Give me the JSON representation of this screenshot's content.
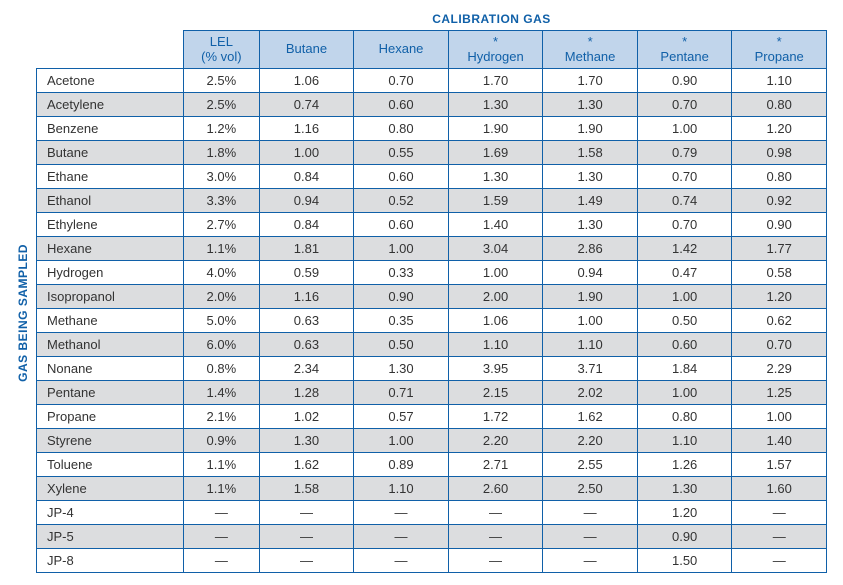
{
  "title_top": "CALIBRATION GAS",
  "title_side": "GAS BEING SAMPLED",
  "colors": {
    "accent": "#1060a8",
    "header_bg": "#c1d5eb",
    "row_odd": "#ffffff",
    "row_even": "#dcdddf",
    "border": "#1060a8",
    "text": "#333333"
  },
  "columns": [
    {
      "key": "lel",
      "label": "LEL\n(% vol)",
      "star": false
    },
    {
      "key": "butane",
      "label": "Butane",
      "star": false
    },
    {
      "key": "hexane",
      "label": "Hexane",
      "star": false
    },
    {
      "key": "hydrogen",
      "label": "Hydrogen",
      "star": true
    },
    {
      "key": "methane",
      "label": "Methane",
      "star": true
    },
    {
      "key": "pentane",
      "label": "Pentane",
      "star": true
    },
    {
      "key": "propane",
      "label": "Propane",
      "star": true
    }
  ],
  "rows": [
    {
      "name": "Acetone",
      "lel": "2.5%",
      "v": [
        "1.06",
        "0.70",
        "1.70",
        "1.70",
        "0.90",
        "1.10"
      ]
    },
    {
      "name": "Acetylene",
      "lel": "2.5%",
      "v": [
        "0.74",
        "0.60",
        "1.30",
        "1.30",
        "0.70",
        "0.80"
      ]
    },
    {
      "name": "Benzene",
      "lel": "1.2%",
      "v": [
        "1.16",
        "0.80",
        "1.90",
        "1.90",
        "1.00",
        "1.20"
      ]
    },
    {
      "name": "Butane",
      "lel": "1.8%",
      "v": [
        "1.00",
        "0.55",
        "1.69",
        "1.58",
        "0.79",
        "0.98"
      ]
    },
    {
      "name": "Ethane",
      "lel": "3.0%",
      "v": [
        "0.84",
        "0.60",
        "1.30",
        "1.30",
        "0.70",
        "0.80"
      ]
    },
    {
      "name": "Ethanol",
      "lel": "3.3%",
      "v": [
        "0.94",
        "0.52",
        "1.59",
        "1.49",
        "0.74",
        "0.92"
      ]
    },
    {
      "name": "Ethylene",
      "lel": "2.7%",
      "v": [
        "0.84",
        "0.60",
        "1.40",
        "1.30",
        "0.70",
        "0.90"
      ]
    },
    {
      "name": "Hexane",
      "lel": "1.1%",
      "v": [
        "1.81",
        "1.00",
        "3.04",
        "2.86",
        "1.42",
        "1.77"
      ]
    },
    {
      "name": "Hydrogen",
      "lel": "4.0%",
      "v": [
        "0.59",
        "0.33",
        "1.00",
        "0.94",
        "0.47",
        "0.58"
      ]
    },
    {
      "name": "Isopropanol",
      "lel": "2.0%",
      "v": [
        "1.16",
        "0.90",
        "2.00",
        "1.90",
        "1.00",
        "1.20"
      ]
    },
    {
      "name": "Methane",
      "lel": "5.0%",
      "v": [
        "0.63",
        "0.35",
        "1.06",
        "1.00",
        "0.50",
        "0.62"
      ]
    },
    {
      "name": "Methanol",
      "lel": "6.0%",
      "v": [
        "0.63",
        "0.50",
        "1.10",
        "1.10",
        "0.60",
        "0.70"
      ]
    },
    {
      "name": "Nonane",
      "lel": "0.8%",
      "v": [
        "2.34",
        "1.30",
        "3.95",
        "3.71",
        "1.84",
        "2.29"
      ]
    },
    {
      "name": "Pentane",
      "lel": "1.4%",
      "v": [
        "1.28",
        "0.71",
        "2.15",
        "2.02",
        "1.00",
        "1.25"
      ]
    },
    {
      "name": "Propane",
      "lel": "2.1%",
      "v": [
        "1.02",
        "0.57",
        "1.72",
        "1.62",
        "0.80",
        "1.00"
      ]
    },
    {
      "name": "Styrene",
      "lel": "0.9%",
      "v": [
        "1.30",
        "1.00",
        "2.20",
        "2.20",
        "1.10",
        "1.40"
      ]
    },
    {
      "name": "Toluene",
      "lel": "1.1%",
      "v": [
        "1.62",
        "0.89",
        "2.71",
        "2.55",
        "1.26",
        "1.57"
      ]
    },
    {
      "name": "Xylene",
      "lel": "1.1%",
      "v": [
        "1.58",
        "1.10",
        "2.60",
        "2.50",
        "1.30",
        "1.60"
      ]
    },
    {
      "name": "JP-4",
      "lel": "—",
      "v": [
        "—",
        "—",
        "—",
        "—",
        "1.20",
        "—"
      ]
    },
    {
      "name": "JP-5",
      "lel": "—",
      "v": [
        "—",
        "—",
        "—",
        "—",
        "0.90",
        "—"
      ]
    },
    {
      "name": "JP-8",
      "lel": "—",
      "v": [
        "—",
        "—",
        "—",
        "—",
        "1.50",
        "—"
      ]
    }
  ],
  "font": {
    "family": "Arial",
    "body_size_pt": 10,
    "header_size_pt": 10,
    "title_size_pt": 9
  }
}
